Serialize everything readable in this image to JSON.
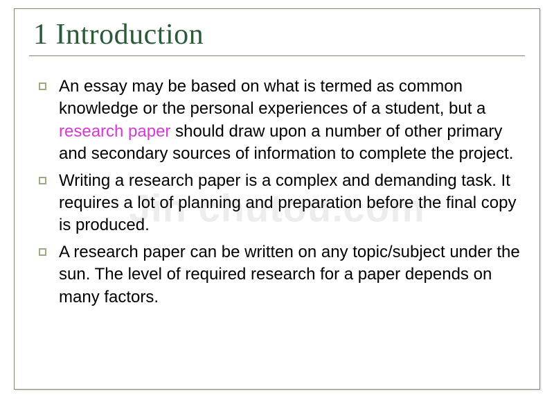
{
  "slide": {
    "title": "1 Introduction",
    "bullets": [
      {
        "pre": "An essay may be based on what is termed as common knowledge or the personal experiences of a student, but a ",
        "highlight": "research paper",
        "post": " should draw upon a number of other primary and secondary sources of information to complete the project."
      },
      {
        "pre": "Writing a research paper is a complex and demanding task. It requires a lot of planning and preparation before the final copy is produced.",
        "highlight": "",
        "post": ""
      },
      {
        "pre": "A research paper can be written on any topic/subject under the sun. The level of required research for a paper depends on many factors.",
        "highlight": "",
        "post": ""
      }
    ],
    "watermark": "Jin chutou.com"
  },
  "colors": {
    "title_color": "#2a5a3a",
    "border_color": "#7a8a6a",
    "bullet_border": "#9aad7e",
    "highlight_color": "#d838d8",
    "text_color": "#000000",
    "background": "#ffffff"
  },
  "typography": {
    "title_fontsize": 42,
    "title_family": "Times New Roman",
    "body_fontsize": 24,
    "body_family": "Arial"
  }
}
